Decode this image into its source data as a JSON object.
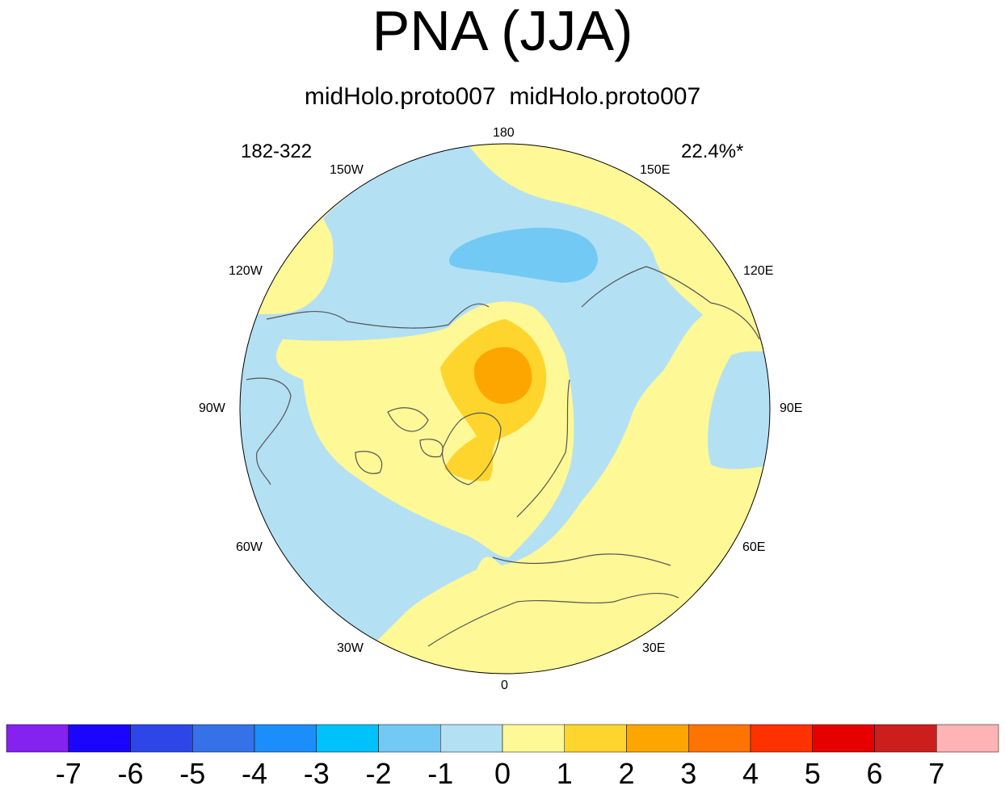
{
  "title": "PNA (JJA)",
  "subtitle": "midHolo.proto007  midHolo.proto007",
  "left_annotation": "182-322",
  "right_annotation": "22.4%*",
  "longitude_labels": {
    "lon_180": "180",
    "lon_150W": "150W",
    "lon_150E": "150E",
    "lon_120W": "120W",
    "lon_120E": "120E",
    "lon_90W": "90W",
    "lon_90E": "90E",
    "lon_60W": "60W",
    "lon_60E": "60E",
    "lon_30W": "30W",
    "lon_30E": "30E",
    "lon_0": "0"
  },
  "colorbar": {
    "colors": [
      "#8522ef",
      "#1b05fc",
      "#2d46e8",
      "#3572e8",
      "#1c8efa",
      "#00c2fb",
      "#72c9f4",
      "#b4e0f4",
      "#fef896",
      "#fed52c",
      "#fda600",
      "#fe7402",
      "#fe3100",
      "#e60000",
      "#cd1e1e",
      "#feb4b4"
    ],
    "labels": [
      "-7",
      "-6",
      "-5",
      "-4",
      "-3",
      "-2",
      "-1",
      "0",
      "1",
      "2",
      "3",
      "4",
      "5",
      "6",
      "7"
    ]
  },
  "map_colors": {
    "neg1": "#b4e0f4",
    "neg2": "#72c9f4",
    "pos1": "#fef896",
    "pos2": "#fed52c",
    "pos3": "#fda600",
    "coast": "#555555"
  }
}
